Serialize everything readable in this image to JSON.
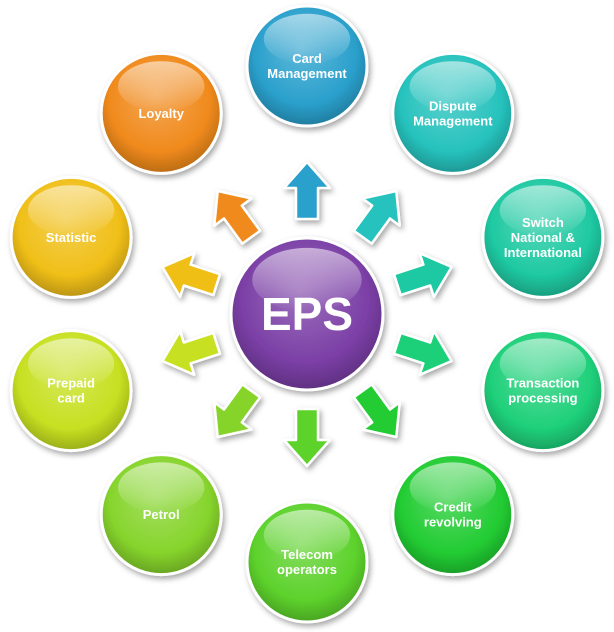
{
  "diagram": {
    "center": {
      "label": "EPS",
      "color": "#7b3fa6"
    },
    "nodes": [
      {
        "id": "card-management",
        "lines": [
          "Card",
          "Management"
        ],
        "color": "#2aa0cc"
      },
      {
        "id": "dispute-management",
        "lines": [
          "Dispute",
          "Management"
        ],
        "color": "#26c2bd"
      },
      {
        "id": "switch-national-international",
        "lines": [
          "Switch",
          "National &",
          "International"
        ],
        "color": "#1fc9a2"
      },
      {
        "id": "transaction-processing",
        "lines": [
          "Transaction",
          "processing"
        ],
        "color": "#1fd07a"
      },
      {
        "id": "credit-revolving",
        "lines": [
          "Credit",
          "revolving"
        ],
        "color": "#22cc33"
      },
      {
        "id": "telecom-operators",
        "lines": [
          "Telecom",
          "operators"
        ],
        "color": "#5dd22c"
      },
      {
        "id": "petrol",
        "lines": [
          "Petrol"
        ],
        "color": "#86d42c"
      },
      {
        "id": "prepaid-card",
        "lines": [
          "Prepaid",
          "card"
        ],
        "color": "#c7e021"
      },
      {
        "id": "statistic",
        "lines": [
          "Statistic"
        ],
        "color": "#f0bf18"
      },
      {
        "id": "loyalty",
        "lines": [
          "Loyalty"
        ],
        "color": "#f08a1c"
      }
    ]
  }
}
